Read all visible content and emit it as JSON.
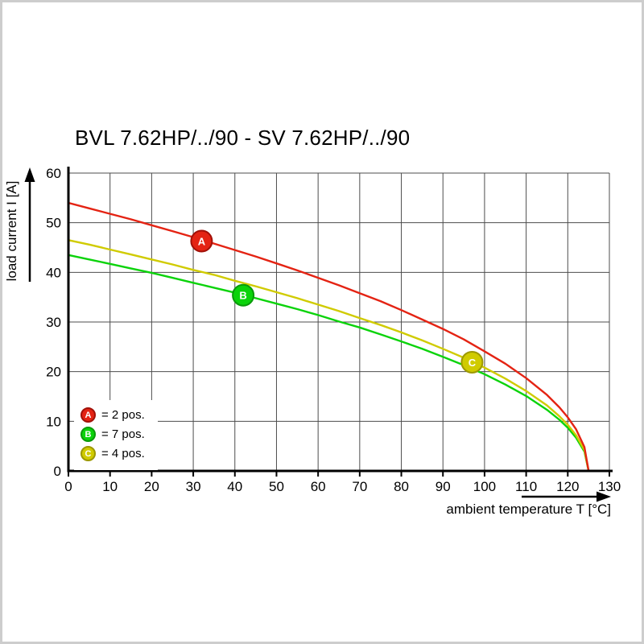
{
  "page": {
    "title": "BVL 7.62HP/../90 - SV 7.62HP/../90"
  },
  "chart_data": {
    "type": "line",
    "title": "BVL 7.62HP/../90 - SV 7.62HP/../90",
    "xlabel": "ambient temperature T [°C]",
    "ylabel": "load current I [A]",
    "xlim": [
      0,
      130
    ],
    "ylim": [
      0,
      60
    ],
    "x_ticks": [
      0,
      10,
      20,
      30,
      40,
      50,
      60,
      70,
      80,
      90,
      100,
      110,
      120,
      130
    ],
    "y_ticks": [
      0,
      10,
      20,
      30,
      40,
      50,
      60
    ],
    "grid": true,
    "legend_position": "lower left",
    "series": [
      {
        "name": "A",
        "label": "= 2 pos.",
        "color": "#e42313",
        "edge": "#a11008",
        "zorder": 2,
        "marker_at": [
          32,
          46.3
        ],
        "points": [
          [
            0,
            54
          ],
          [
            5,
            52.9
          ],
          [
            10,
            51.8
          ],
          [
            15,
            50.7
          ],
          [
            20,
            49.5
          ],
          [
            25,
            48.3
          ],
          [
            30,
            47.1
          ],
          [
            35,
            45.8
          ],
          [
            40,
            44.5
          ],
          [
            45,
            43.2
          ],
          [
            50,
            41.8
          ],
          [
            55,
            40.4
          ],
          [
            60,
            38.9
          ],
          [
            65,
            37.4
          ],
          [
            70,
            35.8
          ],
          [
            75,
            34.2
          ],
          [
            80,
            32.4
          ],
          [
            85,
            30.5
          ],
          [
            90,
            28.6
          ],
          [
            95,
            26.5
          ],
          [
            100,
            24.1
          ],
          [
            105,
            21.6
          ],
          [
            110,
            18.7
          ],
          [
            115,
            15.3
          ],
          [
            118,
            12.8
          ],
          [
            120,
            10.8
          ],
          [
            122,
            8.4
          ],
          [
            124,
            4.8
          ],
          [
            125,
            0
          ]
        ]
      },
      {
        "name": "B",
        "label": "= 7 pos.",
        "color": "#0bd30b",
        "edge": "#0a9a0a",
        "zorder": 0,
        "marker_at": [
          42,
          35.4
        ],
        "points": [
          [
            0,
            43.5
          ],
          [
            5,
            42.6
          ],
          [
            10,
            41.7
          ],
          [
            15,
            40.8
          ],
          [
            20,
            39.9
          ],
          [
            25,
            38.9
          ],
          [
            30,
            37.9
          ],
          [
            35,
            36.9
          ],
          [
            40,
            35.9
          ],
          [
            45,
            34.8
          ],
          [
            50,
            33.7
          ],
          [
            55,
            32.6
          ],
          [
            60,
            31.4
          ],
          [
            65,
            30.1
          ],
          [
            70,
            28.9
          ],
          [
            75,
            27.5
          ],
          [
            80,
            26.1
          ],
          [
            85,
            24.6
          ],
          [
            90,
            23
          ],
          [
            95,
            21.3
          ],
          [
            100,
            19.5
          ],
          [
            105,
            17.4
          ],
          [
            110,
            15.1
          ],
          [
            115,
            12.3
          ],
          [
            118,
            10.3
          ],
          [
            120,
            8.7
          ],
          [
            122,
            6.7
          ],
          [
            124,
            3.9
          ],
          [
            125,
            0
          ]
        ]
      },
      {
        "name": "C",
        "label": "= 4 pos.",
        "color": "#d0cb00",
        "edge": "#9c9800",
        "zorder": 1,
        "marker_at": [
          97,
          21.9
        ],
        "points": [
          [
            0,
            46.5
          ],
          [
            5,
            45.6
          ],
          [
            10,
            44.6
          ],
          [
            15,
            43.6
          ],
          [
            20,
            42.6
          ],
          [
            25,
            41.6
          ],
          [
            30,
            40.5
          ],
          [
            35,
            39.5
          ],
          [
            40,
            38.3
          ],
          [
            45,
            37.2
          ],
          [
            50,
            36
          ],
          [
            55,
            34.8
          ],
          [
            60,
            33.5
          ],
          [
            65,
            32.2
          ],
          [
            70,
            30.8
          ],
          [
            75,
            29.4
          ],
          [
            80,
            27.9
          ],
          [
            85,
            26.3
          ],
          [
            90,
            24.6
          ],
          [
            95,
            22.8
          ],
          [
            100,
            20.8
          ],
          [
            105,
            18.6
          ],
          [
            110,
            16.1
          ],
          [
            115,
            13.2
          ],
          [
            118,
            11
          ],
          [
            120,
            9.3
          ],
          [
            122,
            7.2
          ],
          [
            124,
            4.2
          ],
          [
            125,
            0
          ]
        ]
      }
    ]
  }
}
